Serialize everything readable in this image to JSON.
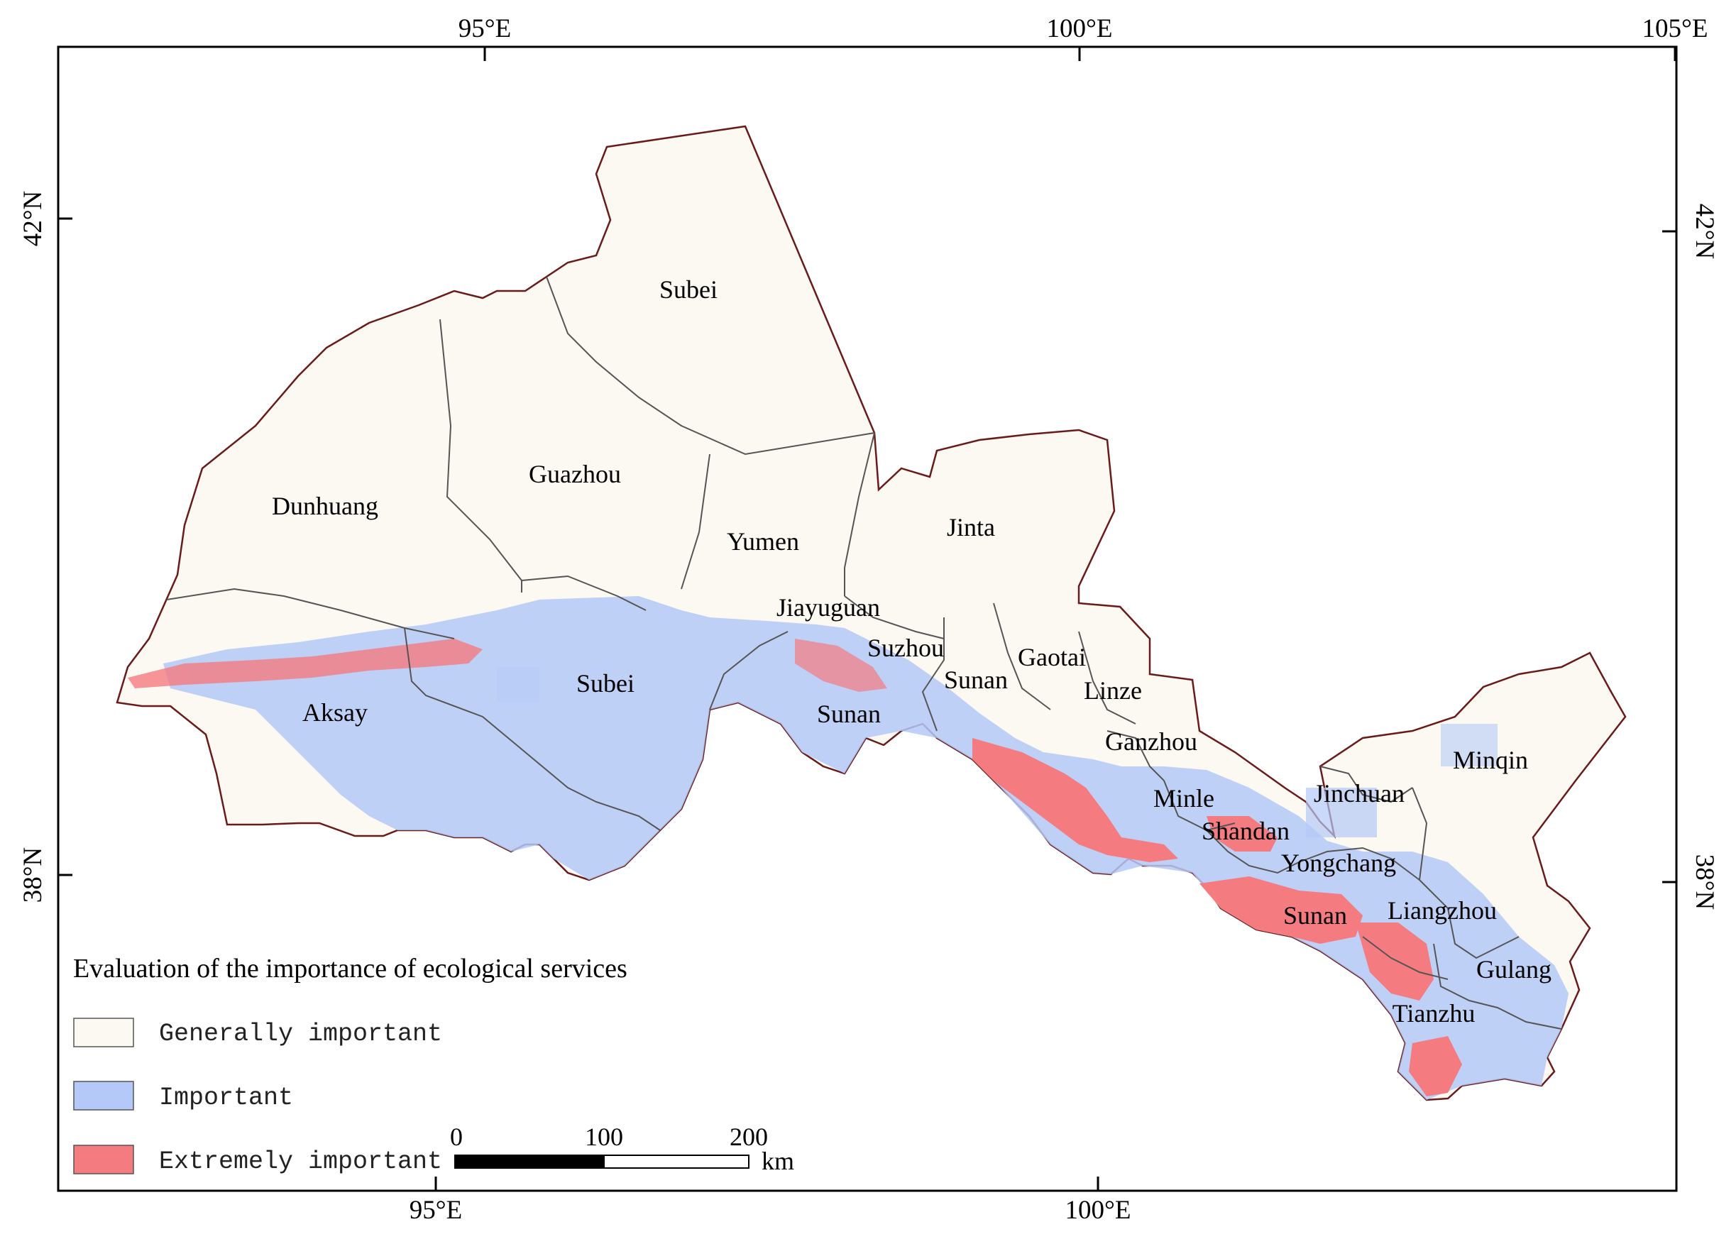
{
  "map": {
    "top_axis": [
      "95°E",
      "100°E",
      "105°E"
    ],
    "bottom_axis": [
      "95°E",
      "100°E"
    ],
    "left_axis": [
      "42°N",
      "38°N"
    ],
    "right_axis": [
      "42°N",
      "38°N"
    ],
    "regions": [
      {
        "name": "Subbei_north",
        "label": "Subei"
      },
      {
        "name": "Guazhou",
        "label": "Guazhou"
      },
      {
        "name": "Dunhuang",
        "label": "Dunhuang"
      },
      {
        "name": "Yumen",
        "label": "Yumen"
      },
      {
        "name": "Jinta",
        "label": "Jinta"
      },
      {
        "name": "Jiayuguan",
        "label": "Jiayuguan"
      },
      {
        "name": "Suzhou",
        "label": "Suzhou"
      },
      {
        "name": "Gaotai",
        "label": "Gaotai"
      },
      {
        "name": "Sunan_a",
        "label": "Sunan"
      },
      {
        "name": "Linze",
        "label": "Linze"
      },
      {
        "name": "Aksay",
        "label": "Aksay"
      },
      {
        "name": "Subei_south",
        "label": "Subei"
      },
      {
        "name": "Sunan_b",
        "label": "Sunan"
      },
      {
        "name": "Ganzhou",
        "label": "Ganzhou"
      },
      {
        "name": "Minle",
        "label": "Minle"
      },
      {
        "name": "Shandan",
        "label": "Shandan"
      },
      {
        "name": "Jinchuan",
        "label": "Jinchuan"
      },
      {
        "name": "Minqin",
        "label": "Minqin"
      },
      {
        "name": "Yongchang",
        "label": "Yongchang"
      },
      {
        "name": "Sunan_c",
        "label": "Sunan"
      },
      {
        "name": "Liangzhou",
        "label": "Liangzhou"
      },
      {
        "name": "Gulang",
        "label": "Gulang"
      },
      {
        "name": "Tianzhu",
        "label": "Tianzhu"
      }
    ]
  },
  "legend": {
    "title": "Evaluation of the importance of ecological services",
    "items": [
      {
        "label": "Generally important",
        "color": "#fcf8f2"
      },
      {
        "label": "Important",
        "color": "#b4c9f7"
      },
      {
        "label": "Extremely important",
        "color": "#f47b80"
      }
    ]
  },
  "scale_bar": {
    "ticks": [
      "0",
      "100",
      "200"
    ],
    "unit": "km"
  },
  "colors": {
    "boundary": "#6b1a1a",
    "inner_boundary": "#555555",
    "generally": "#fcf8f2",
    "important": "#b4c9f7",
    "extremely": "#f47b80"
  }
}
